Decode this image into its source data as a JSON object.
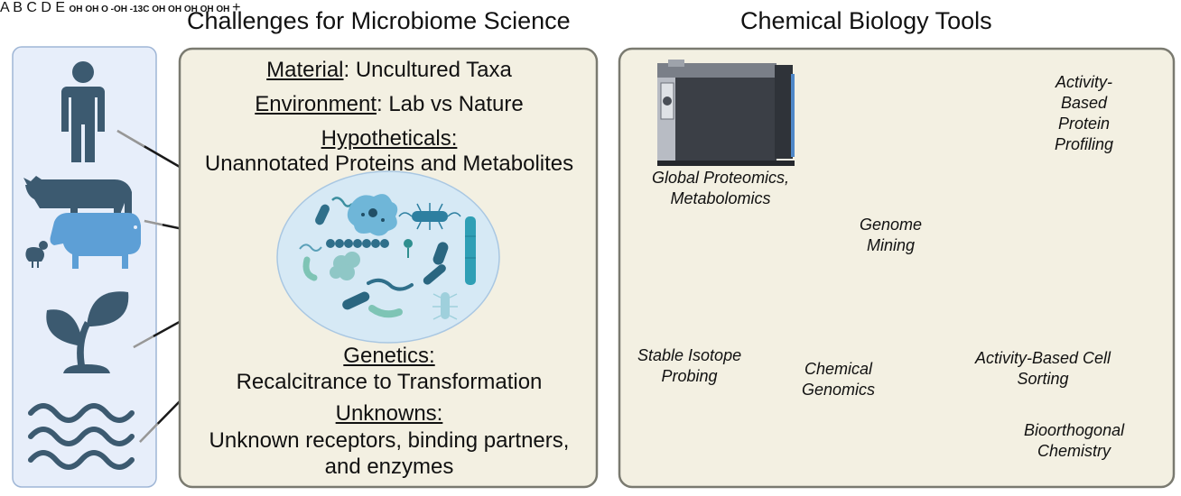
{
  "left_panel": {
    "title": "Challenges for Microbiome Science",
    "challenges": [
      {
        "heading": "Material",
        "text": ": Uncultured Taxa"
      },
      {
        "heading": "Environment",
        "text": ": Lab vs Nature"
      },
      {
        "heading": "Hypotheticals:",
        "text": "Unannotated Proteins and Metabolites"
      },
      {
        "heading": "Genetics:",
        "text": "Recalcitrance to Transformation"
      },
      {
        "heading": "Unknowns:",
        "text": "Unknown receptors, binding partners,",
        "text2": "and enzymes"
      }
    ],
    "sources": [
      "human-icon",
      "livestock-icon",
      "plant-icon",
      "water-icon"
    ]
  },
  "right_panel": {
    "title": "Chemical Biology Tools",
    "tools": {
      "proteomics": [
        "Global Proteomics,",
        "Metabolomics"
      ],
      "abpp": [
        "Activity-",
        "Based",
        "Protein",
        "Profiling"
      ],
      "genome_mining": [
        "Genome",
        "Mining"
      ],
      "sip": [
        "Stable Isotope",
        "Probing"
      ],
      "chemical_genomics": [
        "Chemical",
        "Genomics"
      ],
      "abcs": [
        "Activity-Based Cell",
        "Sorting"
      ],
      "bioorthogonal": [
        "Bioorthogonal",
        "Chemistry"
      ]
    },
    "isotope_labels": {
      "oh": "-OH",
      "c13_prefix": "-",
      "c13_mass": "13",
      "c13_element": "C"
    },
    "sugar_labels": [
      "OH",
      "OH",
      "OH",
      "OH",
      "OH"
    ],
    "gene_labels": [
      "A",
      "B",
      "C",
      "D",
      "E"
    ],
    "metabolite_labels": {
      "oh_top": "OH",
      "oh_bottom": "OH",
      "ome": "O"
    },
    "plus": "+"
  },
  "colors": {
    "panel_fill": "#f3f0e2",
    "panel_border": "#7a7a70",
    "sources_fill": "#e7eefa",
    "sources_border": "#9fb6d6",
    "icon_blue": "#3c5a70",
    "microbe_teal": "#3c8fa0",
    "gene_purple": "#6b5fcf",
    "pacman_blue": "#2d58b5",
    "probe_green": "#8cc07a",
    "probe_red": "#9b1c1c"
  }
}
